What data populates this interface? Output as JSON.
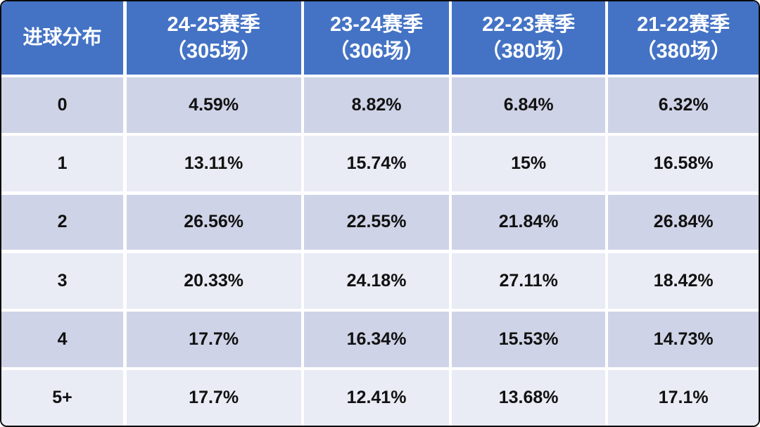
{
  "table": {
    "corner_header": "进球分布",
    "seasons": [
      {
        "line1": "24-25赛季",
        "line2": "（305场）"
      },
      {
        "line1": "23-24赛季",
        "line2": "（306场）"
      },
      {
        "line1": "22-23赛季",
        "line2": "（380场）"
      },
      {
        "line1": "21-22赛季",
        "line2": "（380场）"
      }
    ],
    "rows": [
      {
        "label": "0",
        "values": [
          "4.59%",
          "8.82%",
          "6.84%",
          "6.32%"
        ]
      },
      {
        "label": "1",
        "values": [
          "13.11%",
          "15.74%",
          "15%",
          "16.58%"
        ]
      },
      {
        "label": "2",
        "values": [
          "26.56%",
          "22.55%",
          "21.84%",
          "26.84%"
        ]
      },
      {
        "label": "3",
        "values": [
          "20.33%",
          "24.18%",
          "27.11%",
          "18.42%"
        ]
      },
      {
        "label": "4",
        "values": [
          "17.7%",
          "16.34%",
          "15.53%",
          "14.73%"
        ]
      },
      {
        "label": "5+",
        "values": [
          "17.7%",
          "12.41%",
          "13.68%",
          "17.1%"
        ]
      }
    ]
  },
  "colors": {
    "header_background": "#4473c5",
    "header_text": "#ffffff",
    "band_dark": "#cfd3e7",
    "band_light": "#e9ebf5",
    "gridline": "#ffffff",
    "outer_border": "#0a0a0a",
    "data_text": "#111111"
  },
  "chart_data": {
    "type": "table",
    "title": "进球分布",
    "columns": [
      "进球分布",
      "24-25赛季（305场）",
      "23-24赛季（306场）",
      "22-23赛季（380场）",
      "21-22赛季（380场）"
    ],
    "rows": [
      [
        "0",
        "4.59%",
        "8.82%",
        "6.84%",
        "6.32%"
      ],
      [
        "1",
        "13.11%",
        "15.74%",
        "15%",
        "16.58%"
      ],
      [
        "2",
        "26.56%",
        "22.55%",
        "21.84%",
        "26.84%"
      ],
      [
        "3",
        "20.33%",
        "24.18%",
        "27.11%",
        "18.42%"
      ],
      [
        "4",
        "17.7%",
        "16.34%",
        "15.53%",
        "14.73%"
      ],
      [
        "5+",
        "17.7%",
        "12.41%",
        "13.68%",
        "17.1%"
      ]
    ]
  }
}
